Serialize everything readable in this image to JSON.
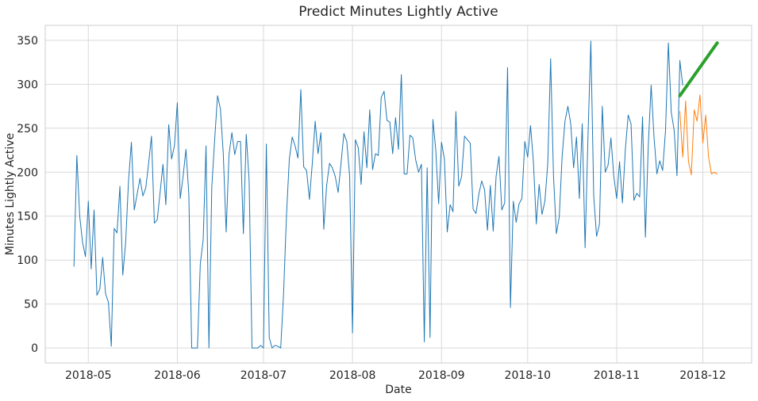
{
  "chart_data": {
    "type": "line",
    "title": "Predict Minutes Lightly Active",
    "xlabel": "Date",
    "ylabel": "Minutes Lightly Active",
    "xlim": [
      "2018-04-16",
      "2018-12-18"
    ],
    "ylim": [
      -17,
      367
    ],
    "grid": true,
    "x_ticks": [
      {
        "date": "2018-05-01",
        "label": "2018-05"
      },
      {
        "date": "2018-06-01",
        "label": "2018-06"
      },
      {
        "date": "2018-07-01",
        "label": "2018-07"
      },
      {
        "date": "2018-08-01",
        "label": "2018-08"
      },
      {
        "date": "2018-09-01",
        "label": "2018-09"
      },
      {
        "date": "2018-10-01",
        "label": "2018-10"
      },
      {
        "date": "2018-11-01",
        "label": "2018-11"
      },
      {
        "date": "2018-12-01",
        "label": "2018-12"
      }
    ],
    "y_ticks": [
      0,
      50,
      100,
      150,
      200,
      250,
      300,
      350
    ],
    "series": [
      {
        "color": "#1f77b4",
        "line_width": 1,
        "start": "2018-04-26",
        "values": [
          93,
          219,
          150,
          120,
          104,
          167,
          90,
          157,
          60,
          67,
          103,
          62,
          52,
          2,
          136,
          131,
          184,
          83,
          120,
          190,
          234,
          157,
          175,
          193,
          173,
          182,
          210,
          241,
          142,
          146,
          177,
          209,
          163,
          254,
          215,
          230,
          279,
          170,
          195,
          226,
          175,
          0,
          0,
          0,
          96,
          123,
          230,
          0,
          183,
          237,
          287,
          272,
          221,
          132,
          220,
          245,
          220,
          235,
          235,
          130,
          243,
          191,
          0,
          0,
          0,
          3,
          0,
          232,
          12,
          0,
          3,
          2,
          0,
          62,
          150,
          215,
          240,
          230,
          216,
          294,
          206,
          202,
          169,
          210,
          258,
          221,
          245,
          135,
          185,
          210,
          205,
          195,
          177,
          210,
          244,
          235,
          196,
          17,
          237,
          228,
          186,
          246,
          205,
          271,
          203,
          221,
          219,
          285,
          292,
          259,
          257,
          221,
          262,
          226,
          311,
          198,
          198,
          242,
          239,
          214,
          200,
          209,
          7,
          205,
          12,
          260,
          225,
          164,
          234,
          215,
          132,
          163,
          155,
          269,
          184,
          195,
          241,
          237,
          233,
          158,
          153,
          175,
          190,
          180,
          134,
          185,
          133,
          195,
          218,
          157,
          165,
          319,
          46,
          167,
          143,
          164,
          170,
          235,
          217,
          253,
          212,
          141,
          186,
          152,
          167,
          210,
          329,
          195,
          130,
          149,
          218,
          258,
          275,
          255,
          205,
          240,
          170,
          255,
          114,
          240,
          349,
          173,
          127,
          141,
          275,
          200,
          208,
          239,
          195,
          170,
          212,
          165,
          225,
          265,
          255,
          168,
          176,
          172,
          263,
          126,
          230,
          299,
          240,
          198,
          213,
          202,
          247,
          347,
          268,
          248,
          196,
          327,
          299
        ]
      },
      {
        "color": "#ff7f0e",
        "line_width": 1,
        "start": "2018-11-23",
        "values": [
          269,
          217,
          281,
          212,
          197,
          271,
          258,
          288,
          233,
          265,
          217,
          198,
          200,
          198
        ]
      },
      {
        "color": "#2ca02c",
        "line_width": 4,
        "start": "2018-11-23",
        "end": "2018-12-06",
        "values": [
          287,
          347
        ]
      }
    ]
  }
}
